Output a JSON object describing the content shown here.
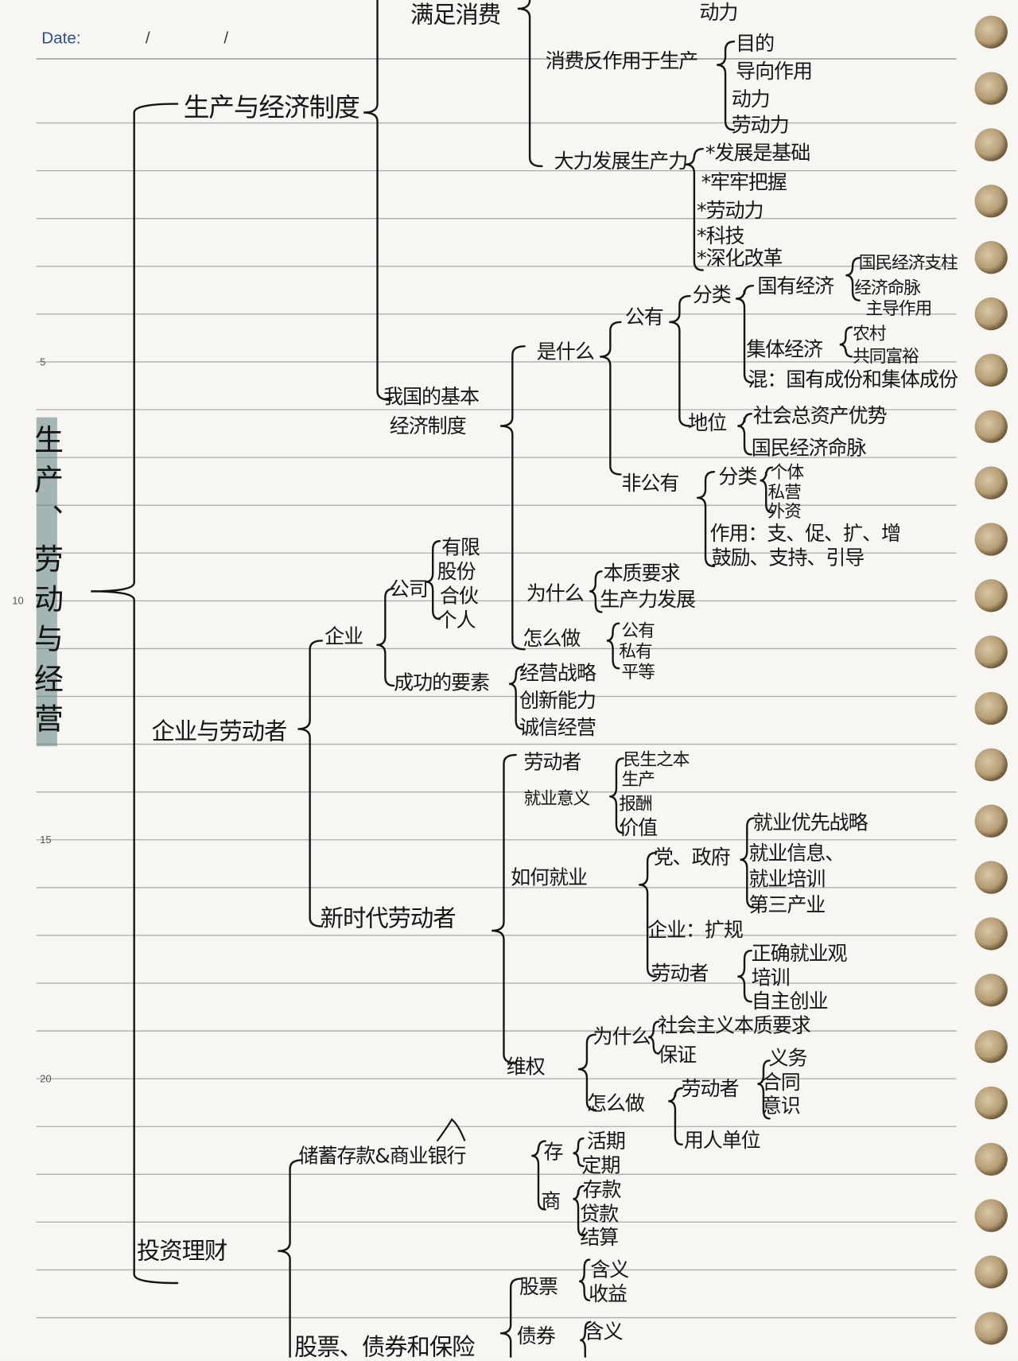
{
  "header": {
    "date_label": "Date:",
    "date_value": "/ /"
  },
  "ruler": [
    "5",
    "10",
    "15",
    "20"
  ],
  "title": "生产、劳动与经营",
  "colors": {
    "paper": "#f7f6f3",
    "ink": "#161616",
    "ruled_line": "#9a9a9a",
    "highlight": "#5f8280",
    "binder_hole": "#b59c74",
    "date_label": "#2e4f8f"
  },
  "mindmap": {
    "b1": {
      "label": "生产与经济制度",
      "consume": {
        "label": "满足消费",
        "top_item": "动力"
      },
      "feedback": {
        "label": "消费反作用于生产",
        "items": [
          "目的",
          "导向作用",
          "动力",
          "劳动力"
        ]
      },
      "develop": {
        "label": "大力发展生产力",
        "items": [
          "*发展是基础",
          "*牢牢把握",
          "*劳动力",
          "*科技",
          "*深化改革"
        ]
      },
      "system": {
        "label_line1": "我国的基本",
        "label_line2": "经济制度",
        "what": {
          "label": "是什么",
          "public": {
            "label": "公有",
            "class_label": "分类",
            "state": {
              "label": "国有经济",
              "items": [
                "国民经济支柱",
                "经济命脉",
                "主导作用"
              ]
            },
            "collective": {
              "label": "集体经济",
              "items": [
                "农村",
                "共同富裕"
              ]
            },
            "mixed": "混：国有成份和集体成份",
            "status": {
              "label": "地位",
              "items": [
                "社会总资产优势",
                "国民经济命脉"
              ]
            }
          },
          "nonpublic": {
            "label": "非公有",
            "class_label": "分类",
            "class_items": [
              "个体",
              "私营",
              "外资"
            ],
            "role": "作用：支、促、扩、增",
            "policy": "鼓励、支持、引导"
          }
        },
        "why": {
          "label": "为什么",
          "items": [
            "本质要求",
            "生产力发展"
          ]
        },
        "how": {
          "label": "怎么做",
          "items": [
            "公有",
            "私有",
            "平等"
          ]
        }
      }
    },
    "b2": {
      "label": "企业与劳动者",
      "enterprise": {
        "label": "企业",
        "company": {
          "label": "公司",
          "items": [
            "有限",
            "股份",
            "合伙",
            "个人"
          ]
        },
        "success": {
          "label": "成功的要素",
          "items": [
            "经营战略",
            "创新能力",
            "诚信经营"
          ]
        }
      },
      "worker": {
        "label": "新时代劳动者",
        "who": "劳动者",
        "meaning": {
          "label": "就业意义",
          "items": [
            "民生之本",
            "生产",
            "报酬",
            "价值"
          ]
        },
        "how": {
          "label": "如何就业",
          "gov": {
            "label": "党、政府",
            "items": [
              "就业优先战略",
              "就业信息、",
              "就业培训",
              "第三产业"
            ]
          },
          "firm": "企业：扩规",
          "labor": {
            "label": "劳动者",
            "items": [
              "正确就业观",
              "培训",
              "自主创业"
            ]
          }
        },
        "rights": {
          "label": "维权",
          "why": {
            "label": "为什么",
            "items": [
              "社会主义本质要求",
              "保证"
            ]
          },
          "how": {
            "label": "怎么做",
            "labor": {
              "label": "劳动者",
              "items": [
                "义务",
                "合同",
                "意识"
              ]
            },
            "employer": "用人单位"
          }
        }
      }
    },
    "b3": {
      "label": "投资理财",
      "bank": {
        "label": "储蓄存款&商业银行",
        "deposit": {
          "label": "存",
          "items": [
            "活期",
            "定期"
          ]
        },
        "commercial": {
          "label": "商",
          "items": [
            "存款",
            "贷款",
            "结算"
          ]
        }
      },
      "securities": {
        "label": "股票、债券和保险",
        "stock": {
          "label": "股票",
          "items": [
            "含义",
            "收益"
          ]
        },
        "bond": {
          "label": "债券",
          "items": [
            "含义"
          ]
        }
      }
    }
  }
}
